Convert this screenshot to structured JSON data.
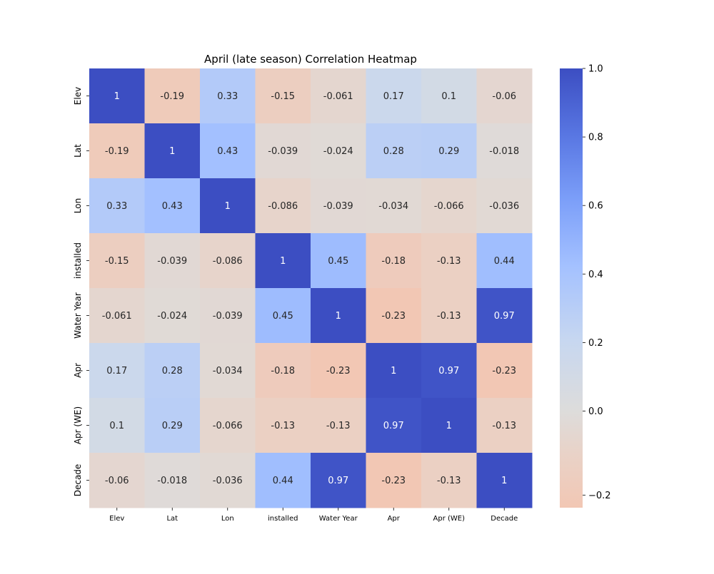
{
  "chart_data": {
    "type": "heatmap",
    "title": "April (late season) Correlation Heatmap",
    "xlabel": "",
    "ylabel": "",
    "row_labels": [
      "Elev",
      "Lat",
      "Lon",
      "installed",
      "Water Year",
      "Apr",
      "Apr (WE)",
      "Decade"
    ],
    "col_labels": [
      "Elev",
      "Lat",
      "Lon",
      "installed",
      "Water Year",
      "Apr",
      "Apr (WE)",
      "Decade"
    ],
    "values": [
      [
        1,
        -0.19,
        0.33,
        -0.15,
        -0.061,
        0.17,
        0.1,
        -0.06
      ],
      [
        -0.19,
        1,
        0.43,
        -0.039,
        -0.024,
        0.28,
        0.29,
        -0.018
      ],
      [
        0.33,
        0.43,
        1,
        -0.086,
        -0.039,
        -0.034,
        -0.066,
        -0.036
      ],
      [
        -0.15,
        -0.039,
        -0.086,
        1,
        0.45,
        -0.18,
        -0.13,
        0.44
      ],
      [
        -0.061,
        -0.024,
        -0.039,
        0.45,
        1,
        -0.23,
        -0.13,
        0.97
      ],
      [
        0.17,
        0.28,
        -0.034,
        -0.18,
        -0.23,
        1,
        0.97,
        -0.23
      ],
      [
        0.1,
        0.29,
        -0.066,
        -0.13,
        -0.13,
        0.97,
        1,
        -0.13
      ],
      [
        -0.06,
        -0.018,
        -0.036,
        0.44,
        0.97,
        -0.23,
        -0.13,
        1
      ]
    ],
    "value_labels": [
      [
        "1",
        "-0.19",
        "0.33",
        "-0.15",
        "-0.061",
        "0.17",
        "0.1",
        "-0.06"
      ],
      [
        "-0.19",
        "1",
        "0.43",
        "-0.039",
        "-0.024",
        "0.28",
        "0.29",
        "-0.018"
      ],
      [
        "0.33",
        "0.43",
        "1",
        "-0.086",
        "-0.039",
        "-0.034",
        "-0.066",
        "-0.036"
      ],
      [
        "-0.15",
        "-0.039",
        "-0.086",
        "1",
        "0.45",
        "-0.18",
        "-0.13",
        "0.44"
      ],
      [
        "-0.061",
        "-0.024",
        "-0.039",
        "0.45",
        "1",
        "-0.23",
        "-0.13",
        "0.97"
      ],
      [
        "0.17",
        "0.28",
        "-0.034",
        "-0.18",
        "-0.23",
        "1",
        "0.97",
        "-0.23"
      ],
      [
        "0.1",
        "0.29",
        "-0.066",
        "-0.13",
        "-0.13",
        "0.97",
        "1",
        "-0.13"
      ],
      [
        "-0.06",
        "-0.018",
        "-0.036",
        "0.44",
        "0.97",
        "-0.23",
        "-0.13",
        "1"
      ]
    ],
    "colorbar": {
      "range": [
        -0.23,
        1.0
      ],
      "ticks": [
        1.0,
        0.8,
        0.6,
        0.4,
        0.2,
        0.0,
        -0.2
      ],
      "tick_labels": [
        "1.0",
        "0.8",
        "0.6",
        "0.4",
        "0.2",
        "0.0",
        "−0.2"
      ],
      "colormap": "coolwarm (reversed, centered at 0)"
    },
    "grid": false,
    "legend": "colorbar-right"
  }
}
